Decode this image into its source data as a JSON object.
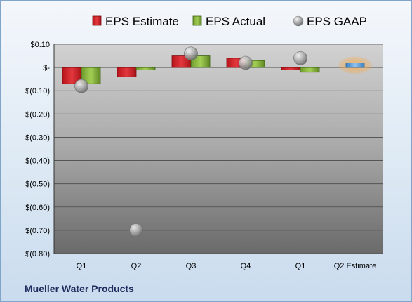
{
  "company": "Mueller Water Products",
  "chart_data": {
    "type": "bar",
    "categories": [
      "Q1",
      "Q2",
      "Q3",
      "Q4",
      "Q1",
      "Q2 Estimate"
    ],
    "series": [
      {
        "name": "EPS Estimate",
        "color": "#d9232a",
        "values": [
          -0.07,
          -0.04,
          0.05,
          0.04,
          -0.01,
          0.02
        ]
      },
      {
        "name": "EPS Actual",
        "color": "#8fbf3f",
        "values": [
          -0.07,
          -0.01,
          0.05,
          0.03,
          -0.02,
          null
        ]
      },
      {
        "name": "EPS GAAP",
        "color": "#b8b8b8",
        "values": [
          -0.08,
          -0.7,
          0.06,
          0.02,
          0.04,
          null
        ]
      }
    ],
    "ylim": [
      -0.8,
      0.1
    ],
    "yticks": [
      {
        "value": 0.1,
        "label": "$0.10"
      },
      {
        "value": 0.0,
        "label": "$-"
      },
      {
        "value": -0.1,
        "label": "$(0.10)"
      },
      {
        "value": -0.2,
        "label": "$(0.20)"
      },
      {
        "value": -0.3,
        "label": "$(0.30)"
      },
      {
        "value": -0.4,
        "label": "$(0.40)"
      },
      {
        "value": -0.5,
        "label": "$(0.50)"
      },
      {
        "value": -0.6,
        "label": "$(0.60)"
      },
      {
        "value": -0.7,
        "label": "$(0.70)"
      },
      {
        "value": -0.8,
        "label": "$(0.80)"
      }
    ],
    "grid": true,
    "legend": "top",
    "estimate_bar_color": "#5aa0e0",
    "estimate_glow_color": "#f3a74a"
  }
}
